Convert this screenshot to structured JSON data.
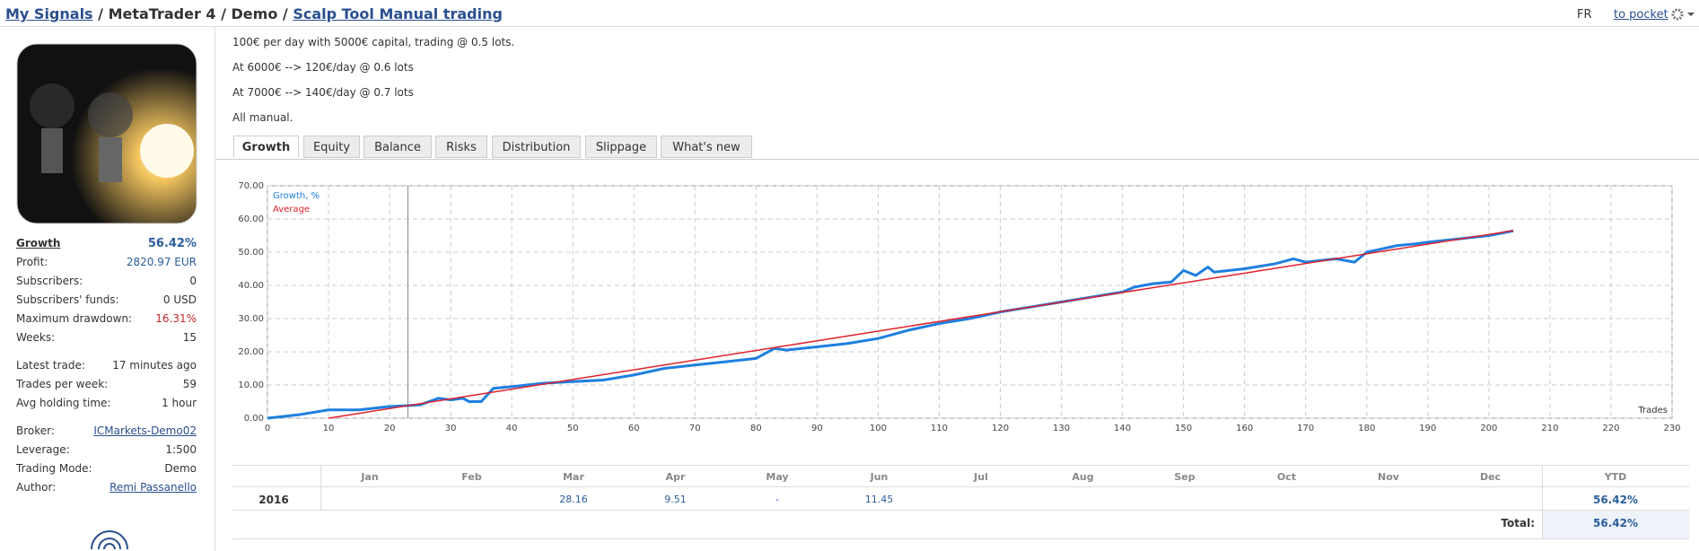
{
  "header": {
    "breadcrumb_link": "My Signals",
    "breadcrumb_mid": "/ MetaTrader 4 / Demo /",
    "signal_name": "Scalp Tool Manual trading",
    "language": "FR",
    "pocket": "to pocket"
  },
  "stats": [
    {
      "label": "Growth",
      "value": "56.42%"
    },
    {
      "label": "Profit:",
      "value": "2820.97 EUR"
    },
    {
      "label": "Subscribers:",
      "value": "0"
    },
    {
      "label": "Subscribers' funds:",
      "value": "0 USD"
    },
    {
      "label": "Maximum drawdown:",
      "value": "16.31%"
    },
    {
      "label": "Weeks:",
      "value": "15"
    },
    {
      "label": "Latest trade:",
      "value": "17 minutes ago"
    },
    {
      "label": "Trades per week:",
      "value": "59"
    },
    {
      "label": "Avg holding time:",
      "value": "1 hour"
    },
    {
      "label": "Broker:",
      "value": "ICMarkets-Demo02"
    },
    {
      "label": "Leverage:",
      "value": "1:500"
    },
    {
      "label": "Trading Mode:",
      "value": "Demo"
    },
    {
      "label": "Author:",
      "value": "Remi Passanello"
    }
  ],
  "description": [
    "100€ per day with 5000€ capital, trading @ 0.5 lots.",
    "At 6000€ --> 120€/day @ 0.6 lots",
    "At 7000€ --> 140€/day @ 0.7 lots",
    "All manual."
  ],
  "tabs": [
    "Growth",
    "Equity",
    "Balance",
    "Risks",
    "Distribution",
    "Slippage",
    "What's new"
  ],
  "chart_data": {
    "type": "line",
    "x_label": "Trades",
    "xlim": [
      0,
      230
    ],
    "xticks": [
      0,
      10,
      20,
      30,
      40,
      50,
      60,
      70,
      80,
      90,
      100,
      110,
      120,
      130,
      140,
      150,
      160,
      170,
      180,
      190,
      200,
      210,
      220,
      230
    ],
    "ylim": [
      0,
      70
    ],
    "yticks": [
      {
        "value": 0,
        "label": "0.00"
      },
      {
        "value": 10,
        "label": "10.00"
      },
      {
        "value": 20,
        "label": "20.00"
      },
      {
        "value": 30,
        "label": "30.00"
      },
      {
        "value": 40,
        "label": "40.00"
      },
      {
        "value": 50,
        "label": "50.00"
      },
      {
        "value": 60,
        "label": "60.00"
      },
      {
        "value": 70,
        "label": "70.00"
      }
    ],
    "grid": true,
    "series": [
      {
        "name": "Growth, %",
        "color": "#1e7fe0",
        "x": [
          0,
          5,
          10,
          15,
          20,
          25,
          28,
          30,
          32,
          33,
          35,
          37,
          40,
          45,
          50,
          55,
          60,
          65,
          70,
          75,
          80,
          83,
          85,
          90,
          95,
          100,
          105,
          110,
          115,
          120,
          125,
          130,
          135,
          140,
          142,
          145,
          148,
          150,
          152,
          154,
          155,
          160,
          165,
          168,
          170,
          175,
          178,
          180,
          185,
          188,
          190,
          195,
          200,
          204
        ],
        "values": [
          0,
          1,
          2.5,
          2.5,
          3.5,
          4,
          6,
          5.5,
          6,
          5,
          5,
          9,
          9.5,
          10.5,
          11,
          11.5,
          13,
          15,
          16,
          17,
          18,
          21,
          20.5,
          21.5,
          22.5,
          24,
          26.5,
          28.5,
          30,
          32,
          33.5,
          35,
          36.5,
          38,
          39.5,
          40.5,
          41,
          44.5,
          43,
          45.5,
          44,
          45,
          46.5,
          48,
          47,
          48,
          47,
          50,
          52,
          52.5,
          53,
          54,
          55,
          56.42
        ]
      },
      {
        "name": "Average",
        "color": "#e0202a",
        "x": [
          10,
          204
        ],
        "values": [
          0,
          56.5
        ]
      }
    ]
  },
  "calendar": {
    "months": [
      "Jan",
      "Feb",
      "Mar",
      "Apr",
      "May",
      "Jun",
      "Jul",
      "Aug",
      "Sep",
      "Oct",
      "Nov",
      "Dec"
    ],
    "ytd_label": "YTD",
    "rows": [
      {
        "year": "2016",
        "values": [
          null,
          null,
          "28.16",
          "9.51",
          "-",
          "11.45",
          null,
          null,
          null,
          null,
          null,
          null
        ],
        "ytd": "56.42%"
      }
    ],
    "total_label": "Total:",
    "total": "56.42%"
  }
}
